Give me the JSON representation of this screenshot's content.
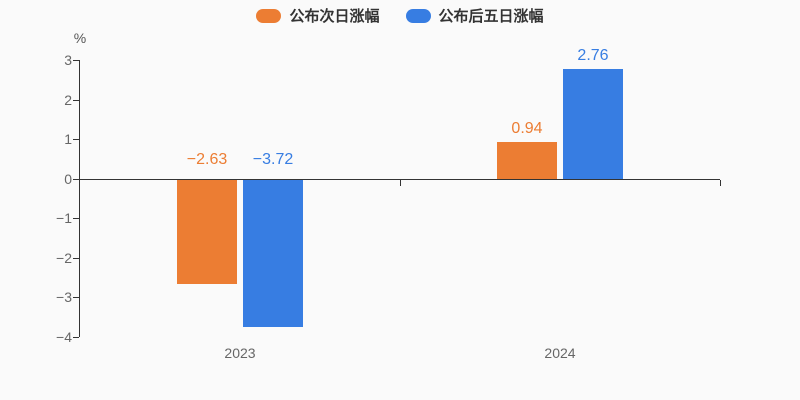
{
  "chart": {
    "background": "#fafafa",
    "axis_color": "#333333",
    "tick_label_color": "#666666",
    "category_label_color": "#666666",
    "unit_label_color": "#555555",
    "legend_text_color": "#333333"
  },
  "chart_data": {
    "type": "bar",
    "categories": [
      "2023",
      "2024"
    ],
    "series": [
      {
        "key": "next-day",
        "name": "公布次日涨幅",
        "color": "#ec7d33",
        "values": [
          -2.63,
          0.94
        ],
        "value_labels": [
          "−2.63",
          "0.94"
        ]
      },
      {
        "key": "five-day-after",
        "name": "公布后五日涨幅",
        "color": "#377de2",
        "values": [
          -3.72,
          2.76
        ],
        "value_labels": [
          "−3.72",
          "2.76"
        ]
      }
    ],
    "title": "",
    "xlabel": "",
    "ylabel": "%",
    "ylim": [
      -4,
      3
    ],
    "ytick_interval": 1,
    "ytick_labels": [
      "3",
      "2",
      "1",
      "0",
      "−1",
      "−2",
      "−3",
      "−4"
    ],
    "grid": false,
    "legend_position": "top-center",
    "bar_label_position": "top"
  }
}
